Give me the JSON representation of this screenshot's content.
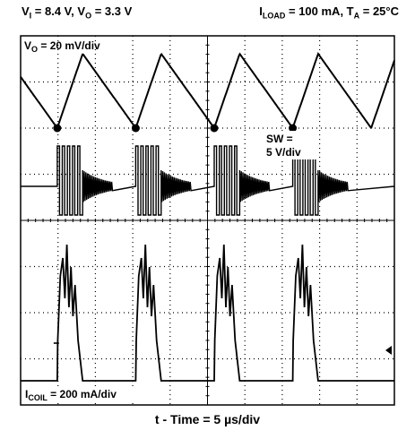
{
  "header": {
    "left": {
      "vi_main": "V",
      "vi_sub": "I",
      "vi_val": " = 8.4 V, ",
      "vo_main": "V",
      "vo_sub": "O",
      "vo_val": " = 3.3 V"
    },
    "right": {
      "i_main": "I",
      "i_sub": "LOAD",
      "i_val": " = 100 mA, ",
      "t_main": "T",
      "t_sub": "A",
      "t_val": " = 25°C"
    }
  },
  "chart_data": {
    "type": "line",
    "xlabel": "t - Time = 5 µs/div",
    "grid": true,
    "divisions": {
      "x": 10,
      "y": 8
    },
    "time_per_div_us": 5,
    "period_us": 10.5,
    "series": [
      {
        "name": "VO",
        "label_main": "V",
        "label_sub": "O",
        "label_val": " = 20 mV/div",
        "scale": "20 mV/div",
        "shape": "sawtooth",
        "valley_us": [
          4.9,
          15.4,
          25.9,
          36.4
        ],
        "peak_us": [
          8.3,
          18.8,
          29.3,
          39.8
        ]
      },
      {
        "name": "SW",
        "label_line1": "SW =",
        "label_line2": "5 V/div",
        "scale": "5 V/div",
        "shape": "switching",
        "burst_start_us": [
          4.9,
          15.4,
          25.9,
          36.4
        ],
        "burst_end_us": [
          8.3,
          18.8,
          29.3,
          39.8
        ]
      },
      {
        "name": "ICOIL",
        "label_main": "I",
        "label_sub": "COIL",
        "label_val": " = 200 mA/div",
        "scale": "200 mA/div",
        "shape": "pulses",
        "pulse_start_us": [
          4.9,
          15.4,
          25.9,
          36.4
        ],
        "pulse_end_us": [
          8.3,
          18.8,
          29.3,
          39.8
        ]
      }
    ]
  }
}
